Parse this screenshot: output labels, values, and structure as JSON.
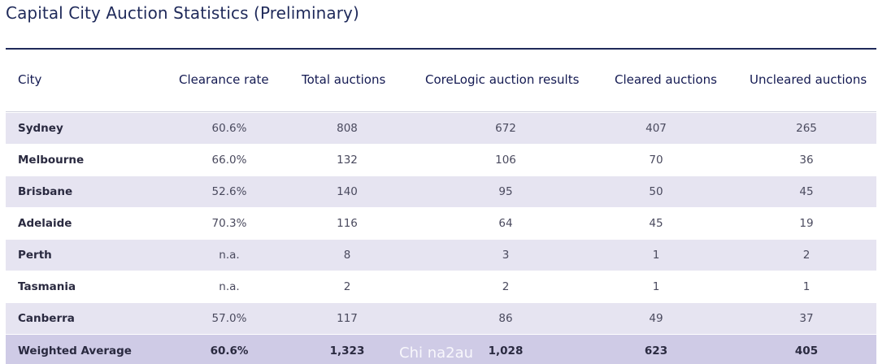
{
  "title": "Capital City Auction Statistics (Preliminary)",
  "columns": [
    "City",
    "Clearance rate",
    "Total auctions",
    "CoreLogic  auction results",
    "Cleared auctions",
    "Uncleared auctions"
  ],
  "rows": [
    {
      "city": "Sydney",
      "rate": "60.6%",
      "total": "808",
      "results": "672",
      "cleared": "407",
      "uncleared": "265"
    },
    {
      "city": "Melbourne",
      "rate": "66.0%",
      "total": "132",
      "results": "106",
      "cleared": "70",
      "uncleared": "36"
    },
    {
      "city": "Brisbane",
      "rate": "52.6%",
      "total": "140",
      "results": "95",
      "cleared": "50",
      "uncleared": "45"
    },
    {
      "city": "Adelaide",
      "rate": "70.3%",
      "total": "116",
      "results": "64",
      "cleared": "45",
      "uncleared": "19"
    },
    {
      "city": "Perth",
      "rate": "n.a.",
      "total": "8",
      "results": "3",
      "cleared": "1",
      "uncleared": "2"
    },
    {
      "city": "Tasmania",
      "rate": "n.a.",
      "total": "2",
      "results": "2",
      "cleared": "1",
      "uncleared": "1"
    },
    {
      "city": "Canberra",
      "rate": "57.0%",
      "total": "117",
      "results": "86",
      "cleared": "49",
      "uncleared": "37"
    },
    {
      "city": "Weighted Average",
      "rate": "60.6%",
      "total": "1,323",
      "results": "1,028",
      "cleared": "623",
      "uncleared": "405"
    }
  ],
  "watermark": "Chi na2au",
  "colors": {
    "title": "#1f2a5a",
    "header_text": "#141a52",
    "row_shade": "#e6e4f1",
    "avg_row": "#cfcbe6"
  }
}
